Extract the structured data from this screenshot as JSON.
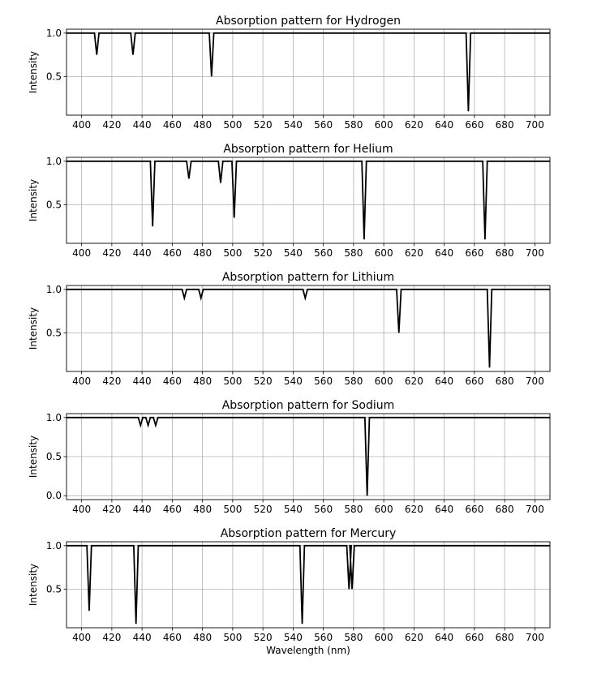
{
  "chart_data": [
    {
      "type": "line",
      "title": "Absorption pattern for Hydrogen",
      "xlabel": "",
      "ylabel": "Intensity",
      "xlim": [
        390,
        710
      ],
      "ylim": [
        0.055,
        1.045
      ],
      "yticks": [
        0.5,
        1.0
      ],
      "grid": true,
      "lines": [
        {
          "x": 410,
          "y": 0.75
        },
        {
          "x": 434,
          "y": 0.75
        },
        {
          "x": 486,
          "y": 0.5
        },
        {
          "x": 656,
          "y": 0.1
        }
      ]
    },
    {
      "type": "line",
      "title": "Absorption pattern for Helium",
      "xlabel": "",
      "ylabel": "Intensity",
      "xlim": [
        390,
        710
      ],
      "ylim": [
        0.055,
        1.045
      ],
      "yticks": [
        0.5,
        1.0
      ],
      "grid": true,
      "lines": [
        {
          "x": 447,
          "y": 0.25
        },
        {
          "x": 471,
          "y": 0.8
        },
        {
          "x": 492,
          "y": 0.75
        },
        {
          "x": 501,
          "y": 0.35
        },
        {
          "x": 587,
          "y": 0.1
        },
        {
          "x": 667,
          "y": 0.1
        }
      ]
    },
    {
      "type": "line",
      "title": "Absorption pattern for Lithium",
      "xlabel": "",
      "ylabel": "Intensity",
      "xlim": [
        390,
        710
      ],
      "ylim": [
        0.055,
        1.045
      ],
      "yticks": [
        0.5,
        1.0
      ],
      "grid": true,
      "lines": [
        {
          "x": 468,
          "y": 0.9
        },
        {
          "x": 479,
          "y": 0.9
        },
        {
          "x": 548,
          "y": 0.9
        },
        {
          "x": 610,
          "y": 0.5
        },
        {
          "x": 670,
          "y": 0.1
        }
      ]
    },
    {
      "type": "line",
      "title": "Absorption pattern for Sodium",
      "xlabel": "",
      "ylabel": "Intensity",
      "xlim": [
        390,
        710
      ],
      "ylim": [
        -0.05,
        1.05
      ],
      "yticks": [
        0.0,
        0.5,
        1.0
      ],
      "grid": true,
      "lines": [
        {
          "x": 439,
          "y": 0.9
        },
        {
          "x": 444,
          "y": 0.9
        },
        {
          "x": 449,
          "y": 0.9
        },
        {
          "x": 589,
          "y": 0.0
        }
      ]
    },
    {
      "type": "line",
      "title": "Absorption pattern for Mercury",
      "xlabel": "Wavelength (nm)",
      "ylabel": "Intensity",
      "xlim": [
        390,
        710
      ],
      "ylim": [
        0.055,
        1.045
      ],
      "yticks": [
        0.5,
        1.0
      ],
      "grid": true,
      "lines": [
        {
          "x": 405,
          "y": 0.25
        },
        {
          "x": 436,
          "y": 0.1
        },
        {
          "x": 546,
          "y": 0.1
        },
        {
          "x": 577,
          "y": 0.5
        },
        {
          "x": 579,
          "y": 0.5
        }
      ]
    }
  ],
  "xticks": [
    400,
    420,
    440,
    460,
    480,
    500,
    520,
    540,
    560,
    580,
    600,
    620,
    640,
    660,
    680,
    700
  ],
  "line_color": "#000000",
  "grid_color": "#b0b0b0"
}
